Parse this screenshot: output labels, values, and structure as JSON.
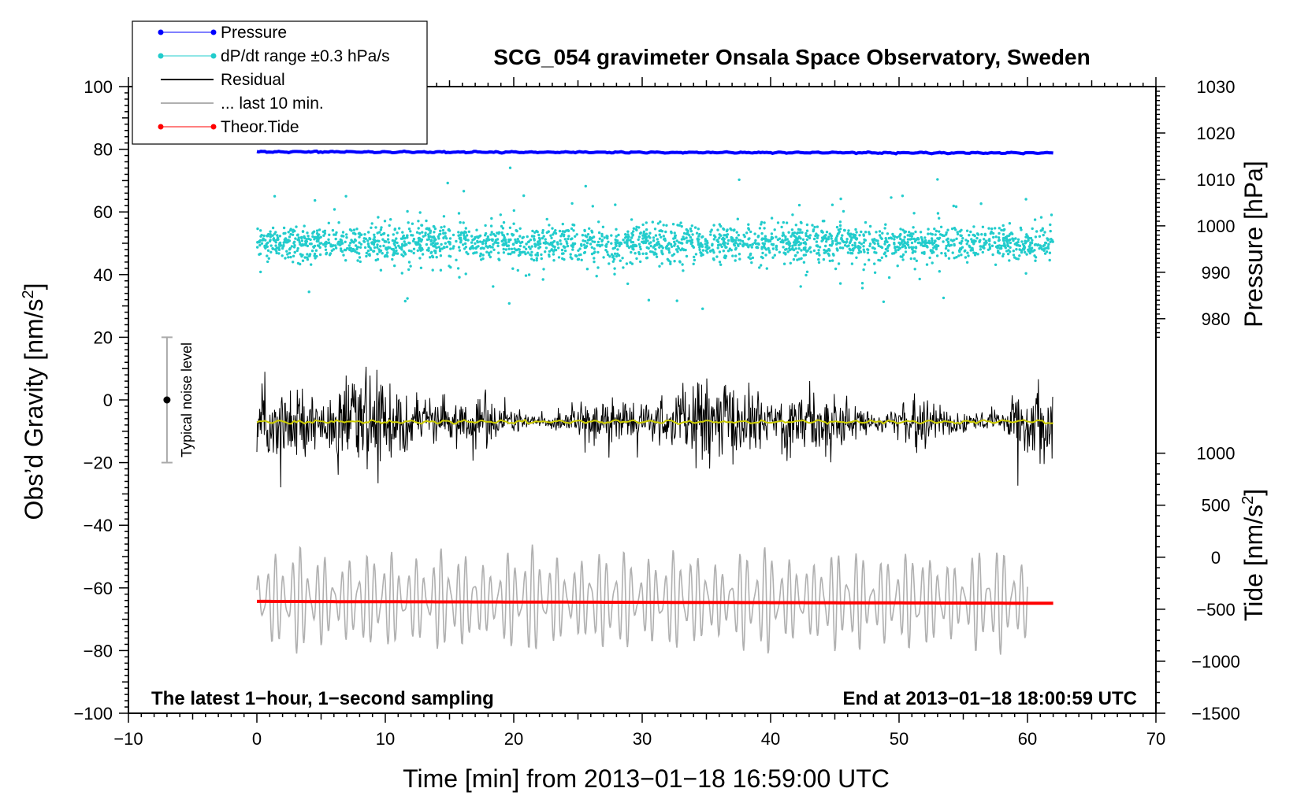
{
  "chart_data": {
    "type": "line",
    "title": "SCG_054 gravimeter Onsala Space Observatory, Sweden",
    "xlabel": "Time [min] from 2013−01−18 16:59:00 UTC",
    "ylabel_left": "Obs’d Gravity [nm/s²]",
    "ylabel_left_main": "Obs’d Gravity [nm/s",
    "ylabel_left_sup": "2",
    "ylabel_left_close": "]",
    "ylabel_right_top": "Pressure [hPa]",
    "ylabel_right_bottom": "Tide [nm/s²]",
    "ylabel_right_bottom_main": "Tide [nm/s",
    "ylabel_right_bottom_sup": "2",
    "ylabel_right_bottom_close": "]",
    "xlim": [
      -10,
      70
    ],
    "ylim_left": [
      -100,
      100
    ],
    "x_ticks": [
      -10,
      0,
      10,
      20,
      30,
      40,
      50,
      60,
      70
    ],
    "x_tick_labels": [
      "−10",
      "0",
      "10",
      "20",
      "30",
      "40",
      "50",
      "60",
      "70"
    ],
    "y_left_ticks": [
      100,
      80,
      60,
      40,
      20,
      0,
      -20,
      -40,
      -60,
      -80,
      -100
    ],
    "y_left_tick_labels": [
      "100",
      "80",
      "60",
      "40",
      "20",
      "0",
      "−20",
      "−40",
      "−60",
      "−80",
      "−100"
    ],
    "pressure_axis": {
      "ticks": [
        1030,
        1020,
        1010,
        1000,
        990,
        980
      ],
      "tick_labels": [
        "1030",
        "1020",
        "1010",
        "1000",
        "990",
        "980"
      ],
      "range_hpa": [
        976,
        1030
      ]
    },
    "tide_axis": {
      "ticks": [
        1000,
        500,
        0,
        -500,
        -1000,
        -1500
      ],
      "tick_labels": [
        "1000",
        "500",
        "0",
        "−500",
        "−1000",
        "−1500"
      ],
      "range": [
        -1500,
        1000
      ]
    },
    "annotation_left": "The latest 1−hour, 1−second sampling",
    "annotation_right": "End at 2013−01−18 18:00:59 UTC",
    "noise_bar": {
      "label": "Typical noise level",
      "x": -7,
      "center": 0,
      "half_range": 20
    },
    "legend": [
      {
        "label": "Pressure",
        "color": "#0000ff",
        "marker": "dot"
      },
      {
        "label": "dP/dt range ±0.3 hPa/s",
        "color": "#22cccc",
        "marker": "dot"
      },
      {
        "label": "Residual",
        "color": "#000000",
        "marker": "none"
      },
      {
        "label": "... last 10 min.",
        "color": "#b0b0b0",
        "marker": "none"
      },
      {
        "label": "Theor.Tide",
        "color": "#ff0000",
        "marker": "dot"
      }
    ],
    "series": [
      {
        "name": "Pressure",
        "color": "#0000ff",
        "x_range": [
          0,
          62
        ],
        "mean_left_units": 79.2,
        "trend_left_units": -0.4
      },
      {
        "name": "dP/dt",
        "color": "#22cccc",
        "x_range": [
          0,
          62
        ],
        "center_left_units": 50,
        "typical_spread": 5,
        "max_spread": 18
      },
      {
        "name": "Residual",
        "color": "#000000",
        "x_range": [
          0,
          62
        ],
        "center_left_units": -7,
        "amplitude_left_units": 14
      },
      {
        "name": "Residual smoothed",
        "color": "#cccc00",
        "x_range": [
          0,
          62
        ],
        "value_left_units": -7
      },
      {
        "name": "... last 10 min.",
        "color": "#b0b0b0",
        "x_range": [
          0,
          60
        ],
        "center_left_units": -64,
        "amplitude_left_units": 16
      },
      {
        "name": "Theor.Tide",
        "color": "#ff0000",
        "x_range": [
          0,
          62
        ],
        "start_left_units": -64.3,
        "end_left_units": -64.9
      }
    ]
  }
}
